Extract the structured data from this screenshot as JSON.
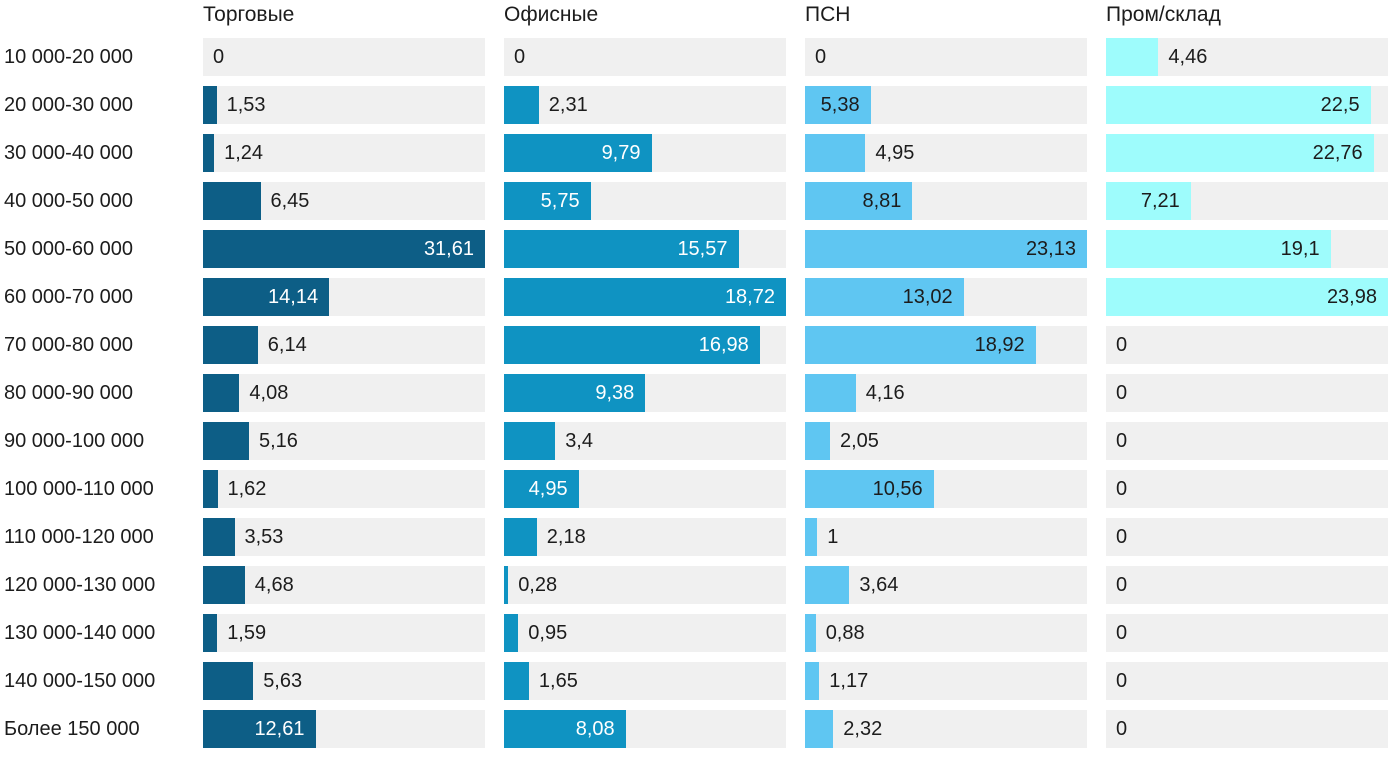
{
  "chart_data": {
    "type": "bar",
    "orientation": "horizontal",
    "value_format": "decimal-comma",
    "grid": false,
    "track_color": "#f0f0f0",
    "text_color": "#1c1c1c",
    "categories": [
      "10 000-20 000",
      "20 000-30 000",
      "30 000-40 000",
      "40 000-50 000",
      "50 000-60 000",
      "60 000-70 000",
      "70 000-80 000",
      "80 000-90 000",
      "90 000-100 000",
      "100 000-110 000",
      "110 000-120 000",
      "120 000-130 000",
      "130 000-140 000",
      "140 000-150 000",
      "Более 150 000"
    ],
    "series": [
      {
        "name": "Торговые",
        "color": "#0d5e86",
        "label_color_inside": "#ffffff",
        "axis_max": 31.61,
        "values": [
          0,
          1.53,
          1.24,
          6.45,
          31.61,
          14.14,
          6.14,
          4.08,
          5.16,
          1.62,
          3.53,
          4.68,
          1.59,
          5.63,
          12.61
        ],
        "labels": [
          "0",
          "1,53",
          "1,24",
          "6,45",
          "31,61",
          "14,14",
          "6,14",
          "4,08",
          "5,16",
          "1,62",
          "3,53",
          "4,68",
          "1,59",
          "5,63",
          "12,61"
        ]
      },
      {
        "name": "Офисные",
        "color": "#0f93c2",
        "label_color_inside": "#ffffff",
        "axis_max": 18.72,
        "values": [
          0,
          2.31,
          9.79,
          5.75,
          15.57,
          18.72,
          16.98,
          9.38,
          3.4,
          4.95,
          2.18,
          0.28,
          0.95,
          1.65,
          8.08
        ],
        "labels": [
          "0",
          "2,31",
          "9,79",
          "5,75",
          "15,57",
          "18,72",
          "16,98",
          "9,38",
          "3,4",
          "4,95",
          "2,18",
          "0,28",
          "0,95",
          "1,65",
          "8,08"
        ]
      },
      {
        "name": "ПСН",
        "color": "#5fc6f2",
        "label_color_inside": "#1c1c1c",
        "axis_max": 23.13,
        "values": [
          0,
          5.38,
          4.95,
          8.81,
          23.13,
          13.02,
          18.92,
          4.16,
          2.05,
          10.56,
          1,
          3.64,
          0.88,
          1.17,
          2.32
        ],
        "labels": [
          "0",
          "5,38",
          "4,95",
          "8,81",
          "23,13",
          "13,02",
          "18,92",
          "4,16",
          "2,05",
          "10,56",
          "1",
          "3,64",
          "0,88",
          "1,17",
          "2,32"
        ]
      },
      {
        "name": "Пром/склад",
        "color": "#9efcfc",
        "label_color_inside": "#1c1c1c",
        "axis_max": 23.98,
        "values": [
          4.46,
          22.5,
          22.76,
          7.21,
          19.1,
          23.98,
          0,
          0,
          0,
          0,
          0,
          0,
          0,
          0,
          0
        ],
        "labels": [
          "4,46",
          "22,5",
          "22,76",
          "7,21",
          "19,1",
          "23,98",
          "0",
          "0",
          "0",
          "0",
          "0",
          "0",
          "0",
          "0",
          "0"
        ]
      }
    ]
  }
}
